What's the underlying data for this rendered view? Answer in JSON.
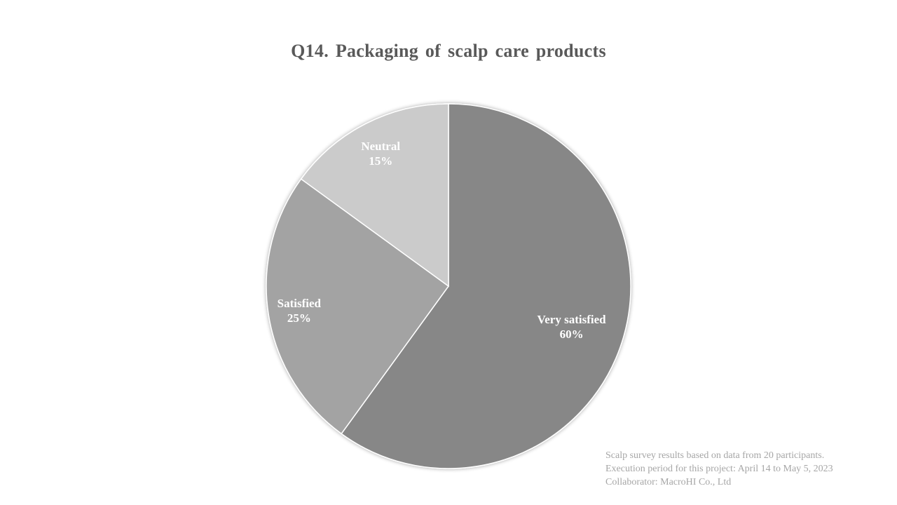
{
  "chart_data": {
    "type": "pie",
    "title": "Q14. Packaging of scalp care products",
    "categories": [
      "Very satisfied",
      "Satisfied",
      "Neutral"
    ],
    "values": [
      60,
      25,
      15
    ],
    "value_labels": [
      "60%",
      "25%",
      "15%"
    ],
    "colors": [
      "#878787",
      "#a3a3a3",
      "#cbcbcb"
    ],
    "start": "12 o'clock",
    "direction": "clockwise",
    "legend": "none",
    "data_labels": "inside"
  },
  "footnote": {
    "lines": [
      "Scalp survey results based on data from 20 participants.",
      "Execution period for this project: April 14 to May 5, 2023",
      "Collaborator: MacroHI Co., Ltd"
    ]
  }
}
